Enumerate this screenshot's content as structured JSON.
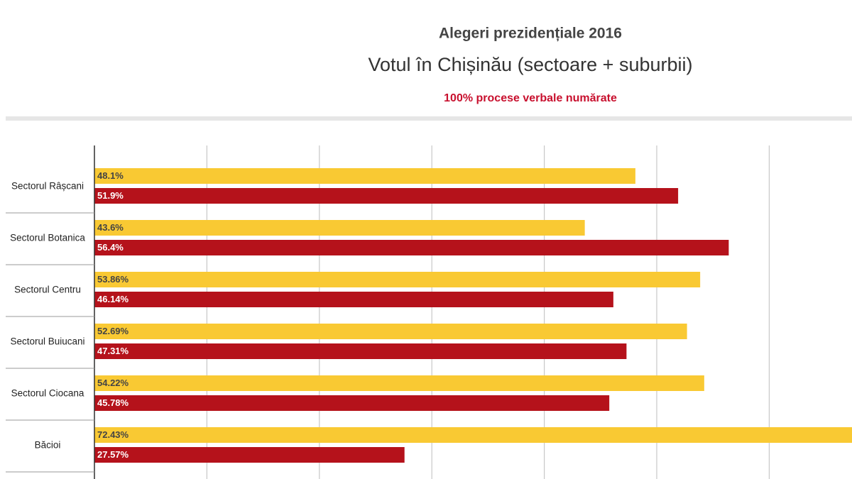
{
  "chart_data": {
    "type": "hbar",
    "title": "Alegeri prezidențiale 2016",
    "subtitle": "Votul în Chișinău (sectoare + suburbii)",
    "annotation": "100% procese verbale numărate",
    "categories": [
      "Sectorul Râșcani",
      "Sectorul Botanica",
      "Sectorul Centru",
      "Sectorul Buiucani",
      "Sectorul Ciocana",
      "Băcioi"
    ],
    "series": [
      {
        "color": "#f9c933",
        "values": [
          48.1,
          43.6,
          53.86,
          52.69,
          54.22,
          72.43
        ],
        "value_labels": [
          "48.1%",
          "43.6%",
          "53.86%",
          "52.69%",
          "54.22%",
          "72.43%"
        ]
      },
      {
        "color": "#b5121b",
        "values": [
          51.9,
          56.4,
          46.14,
          47.31,
          45.78,
          27.57
        ],
        "value_labels": [
          "51.9%",
          "56.4%",
          "46.14%",
          "47.31%",
          "45.78%",
          "27.57%"
        ]
      }
    ],
    "xlim": [
      0,
      67.36
    ],
    "xticks": [
      0,
      10,
      20,
      30,
      40,
      50,
      60
    ],
    "grid": true
  }
}
